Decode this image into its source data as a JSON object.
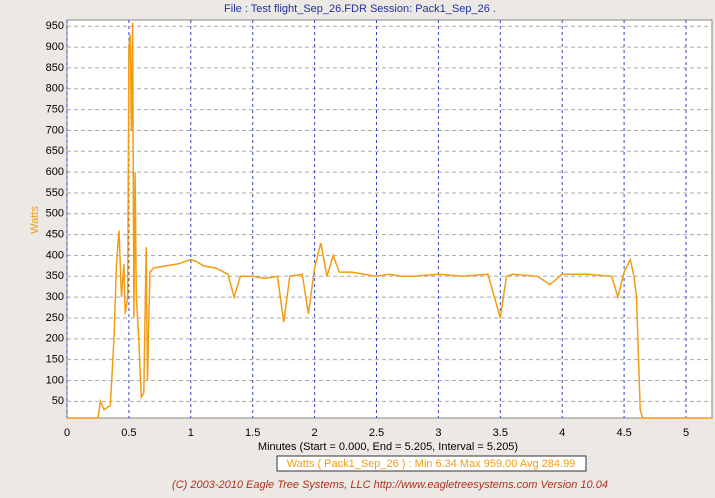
{
  "chart_data": {
    "type": "line",
    "title": "File : Test flight_Sep_26.FDR   Session: Pack1_Sep_26 .",
    "x_label": "Minutes (Start = 0.000, End = 5.205, Interval = 5.205)",
    "y_label": "Watts",
    "legend_text": "Watts ( Pack1_Sep_26 ) :  Min 6.34   Max 959.00   Avg 284.99",
    "footer": "(C) 2003-2010 Eagle Tree Systems, LLC      http://www.eagletreesystems.com      Version 10.04",
    "xlim": [
      0,
      5.21
    ],
    "ylim": [
      10,
      965
    ],
    "xticks": [
      0,
      0.5,
      1,
      1.5,
      2,
      2.5,
      3,
      3.5,
      4,
      4.5,
      5
    ],
    "yticks": [
      50,
      100,
      150,
      200,
      250,
      300,
      350,
      400,
      450,
      500,
      550,
      600,
      650,
      700,
      750,
      800,
      850,
      900,
      950
    ],
    "grid": true,
    "series": [
      {
        "name": "Watts",
        "color": "#f39c12",
        "x": [
          0,
          0.25,
          0.27,
          0.3,
          0.35,
          0.38,
          0.4,
          0.42,
          0.44,
          0.46,
          0.47,
          0.49,
          0.5,
          0.51,
          0.52,
          0.53,
          0.54,
          0.55,
          0.56,
          0.58,
          0.6,
          0.62,
          0.64,
          0.65,
          0.67,
          0.7,
          0.8,
          0.9,
          1.0,
          1.05,
          1.1,
          1.2,
          1.3,
          1.35,
          1.4,
          1.5,
          1.6,
          1.7,
          1.75,
          1.8,
          1.9,
          1.95,
          2.0,
          2.05,
          2.1,
          2.15,
          2.2,
          2.3,
          2.4,
          2.5,
          2.6,
          2.7,
          2.8,
          3.0,
          3.2,
          3.4,
          3.5,
          3.55,
          3.6,
          3.8,
          3.9,
          4.0,
          4.2,
          4.4,
          4.45,
          4.5,
          4.55,
          4.58,
          4.6,
          4.63,
          4.65,
          5.2
        ],
        "values": [
          10,
          10,
          50,
          30,
          40,
          200,
          380,
          460,
          300,
          380,
          260,
          300,
          900,
          930,
          700,
          959,
          250,
          600,
          300,
          200,
          60,
          70,
          420,
          100,
          360,
          370,
          375,
          380,
          390,
          385,
          375,
          370,
          355,
          300,
          350,
          350,
          345,
          350,
          240,
          350,
          355,
          260,
          370,
          430,
          350,
          400,
          360,
          360,
          355,
          350,
          355,
          350,
          350,
          355,
          350,
          355,
          250,
          350,
          355,
          350,
          330,
          355,
          355,
          350,
          300,
          360,
          390,
          350,
          300,
          30,
          10,
          10
        ]
      }
    ]
  }
}
